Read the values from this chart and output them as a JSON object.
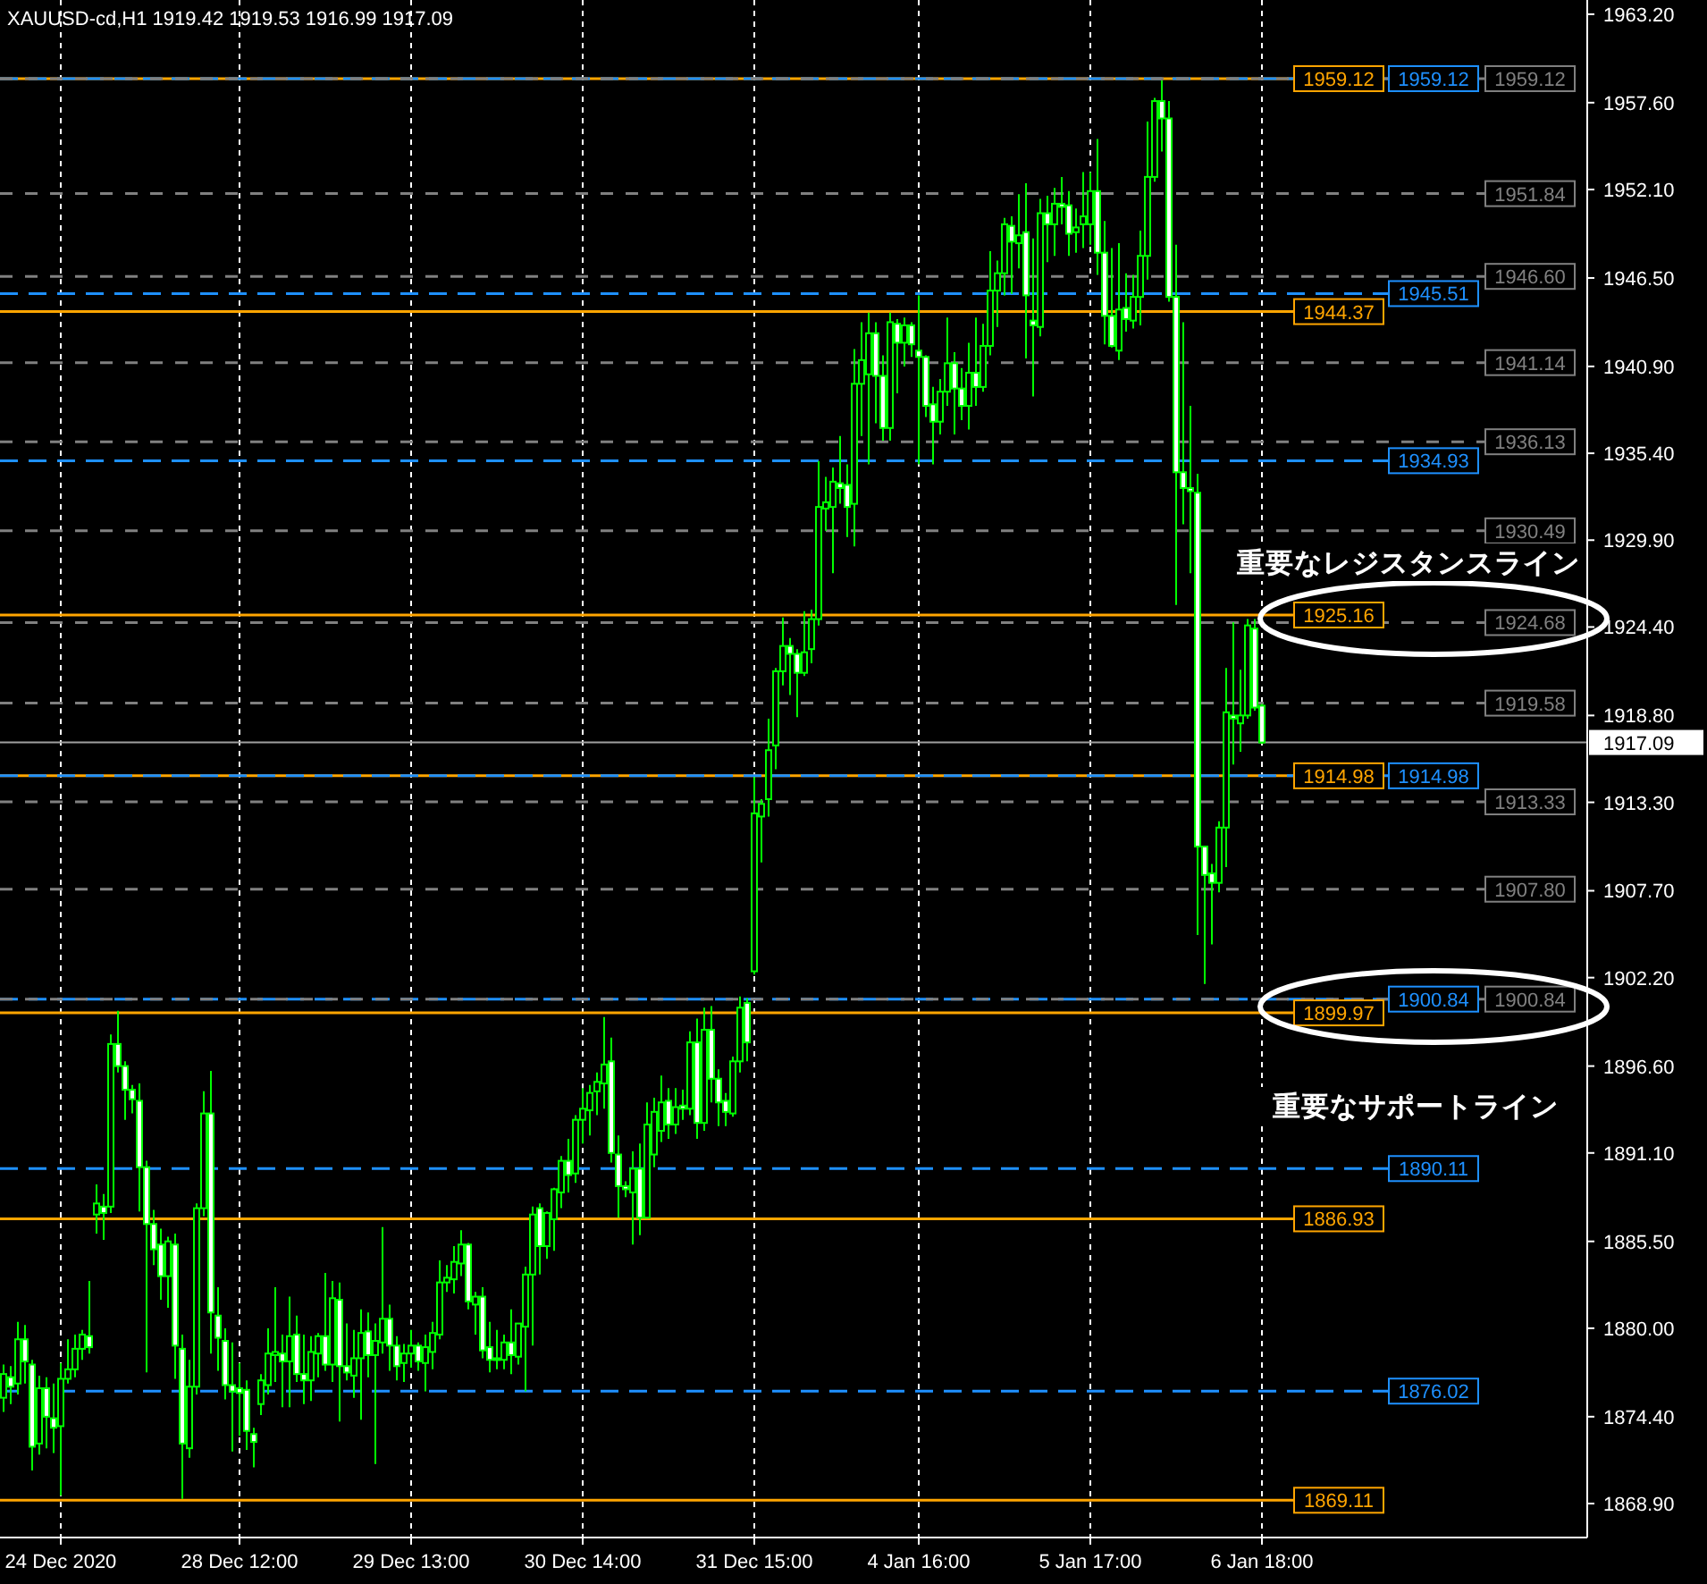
{
  "chart_data": {
    "type": "candlestick",
    "title": "XAUUSD-cd,H1  1919.42 1919.53 1916.99 1917.09",
    "categories": [
      null,
      null,
      null,
      null,
      null,
      null,
      null,
      null,
      "24 Dec 2020",
      null,
      null,
      null,
      null,
      null,
      null,
      null,
      null,
      null,
      null,
      null,
      null,
      null,
      null,
      null,
      null,
      null,
      null,
      null,
      null,
      null,
      null,
      null,
      null,
      "28 Dec 12:00",
      null,
      null,
      null,
      null,
      null,
      null,
      null,
      null,
      null,
      null,
      null,
      null,
      null,
      null,
      null,
      null,
      null,
      null,
      null,
      null,
      null,
      null,
      null,
      "29 Dec 13:00",
      null,
      null,
      null,
      null,
      null,
      null,
      null,
      null,
      null,
      null,
      null,
      null,
      null,
      null,
      null,
      null,
      null,
      null,
      null,
      null,
      null,
      null,
      null,
      "30 Dec 14:00",
      null,
      null,
      null,
      null,
      null,
      null,
      null,
      null,
      null,
      null,
      null,
      null,
      null,
      null,
      null,
      null,
      null,
      null,
      null,
      null,
      null,
      null,
      null,
      "31 Dec 15:00",
      null,
      null,
      null,
      null,
      null,
      null,
      null,
      null,
      null,
      null,
      null,
      null,
      null,
      null,
      null,
      null,
      null,
      null,
      null,
      null,
      null,
      null,
      "4 Jan 16:00",
      null,
      null,
      null,
      null,
      null,
      null,
      null,
      null,
      null,
      null,
      null,
      null,
      null,
      null,
      null,
      null,
      null,
      null,
      null,
      null,
      null,
      null,
      null,
      "5 Jan 17:00",
      null,
      null,
      null,
      null,
      null,
      null,
      null,
      null,
      null,
      null,
      null,
      null,
      null,
      null,
      null,
      null,
      null,
      null,
      null,
      null,
      null,
      null,
      null,
      "6 Jan 18:00",
      null,
      null,
      null,
      null,
      null,
      null,
      null,
      null,
      null,
      null,
      null,
      null,
      null,
      null,
      null,
      null,
      null,
      null,
      null,
      null,
      null,
      null,
      null,
      null,
      null,
      null,
      null,
      null,
      null,
      null,
      null,
      null,
      null,
      null,
      null,
      null,
      null,
      null,
      null,
      null,
      null,
      null,
      null,
      null,
      null
    ],
    "ohlc": [
      [
        1875.6,
        1877.7,
        1874.7,
        1877.1
      ],
      [
        1876.9,
        1877.6,
        1875.2,
        1876.3
      ],
      [
        1876.5,
        1880.4,
        1875.8,
        1879.3
      ],
      [
        1879.3,
        1880.2,
        1876.5,
        1877.9
      ],
      [
        1877.7,
        1878.0,
        1871.0,
        1872.5
      ],
      [
        1872.7,
        1877.0,
        1872.0,
        1876.2
      ],
      [
        1876.2,
        1876.9,
        1872.4,
        1874.4
      ],
      [
        1874.3,
        1876.5,
        1872.1,
        1873.7
      ],
      [
        1873.8,
        1877.8,
        1869.4,
        1876.8
      ],
      [
        1876.8,
        1879.3,
        1876.5,
        1877.4
      ],
      [
        1877.4,
        1879.6,
        1876.9,
        1878.7
      ],
      [
        1878.7,
        1879.9,
        1878.0,
        1879.6
      ],
      [
        1879.5,
        1883.0,
        1878.4,
        1878.8
      ],
      [
        1887.2,
        1889.1,
        1886.0,
        1887.9
      ],
      [
        1887.7,
        1888.5,
        1885.6,
        1887.3
      ],
      [
        1887.7,
        1898.6,
        1887.3,
        1898.0
      ],
      [
        1898.0,
        1900.1,
        1896.2,
        1896.6
      ],
      [
        1896.6,
        1896.9,
        1893.2,
        1895.1
      ],
      [
        1895.1,
        1895.4,
        1893.6,
        1894.5
      ],
      [
        1894.4,
        1895.5,
        1887.4,
        1890.2
      ],
      [
        1890.2,
        1890.6,
        1877.2,
        1886.6
      ],
      [
        1886.6,
        1887.5,
        1884.0,
        1885.0
      ],
      [
        1885.3,
        1886.3,
        1881.8,
        1883.3
      ],
      [
        1883.3,
        1885.8,
        1881.3,
        1885.5
      ],
      [
        1885.3,
        1886.0,
        1876.8,
        1878.9
      ],
      [
        1878.7,
        1879.6,
        1869.2,
        1872.7
      ],
      [
        1872.4,
        1878.0,
        1871.8,
        1876.3
      ],
      [
        1876.3,
        1887.9,
        1875.8,
        1887.6
      ],
      [
        1887.6,
        1895.0,
        1887.1,
        1893.6
      ],
      [
        1893.6,
        1896.3,
        1878.4,
        1881.0
      ],
      [
        1880.8,
        1882.6,
        1877.3,
        1879.4
      ],
      [
        1879.2,
        1880.0,
        1875.5,
        1876.4
      ],
      [
        1876.4,
        1879.1,
        1872.2,
        1876.0
      ],
      [
        1876.2,
        1877.8,
        1873.2,
        1875.9
      ],
      [
        1876.1,
        1876.7,
        1872.3,
        1873.5
      ],
      [
        1873.3,
        1873.7,
        1871.2,
        1872.8
      ],
      [
        1875.2,
        1877.1,
        1874.5,
        1876.7
      ],
      [
        1876.4,
        1880.0,
        1875.8,
        1878.4
      ],
      [
        1878.3,
        1882.6,
        1876.6,
        1878.5
      ],
      [
        1878.4,
        1879.6,
        1875.0,
        1877.9
      ],
      [
        1877.9,
        1882.0,
        1875.0,
        1879.5
      ],
      [
        1879.6,
        1880.8,
        1876.6,
        1877.1
      ],
      [
        1877.1,
        1879.6,
        1875.2,
        1876.7
      ],
      [
        1876.7,
        1879.5,
        1875.4,
        1878.5
      ],
      [
        1878.4,
        1879.7,
        1876.9,
        1879.5
      ],
      [
        1879.5,
        1883.5,
        1877.3,
        1877.7
      ],
      [
        1877.7,
        1883.0,
        1876.6,
        1881.9
      ],
      [
        1881.8,
        1882.9,
        1874.1,
        1877.6
      ],
      [
        1877.6,
        1880.3,
        1876.7,
        1877.2
      ],
      [
        1877.0,
        1879.9,
        1875.6,
        1878.1
      ],
      [
        1878.1,
        1881.2,
        1874.2,
        1879.7
      ],
      [
        1879.8,
        1881.0,
        1876.9,
        1878.3
      ],
      [
        1878.3,
        1880.3,
        1871.4,
        1879.2
      ],
      [
        1879.1,
        1886.4,
        1878.4,
        1880.6
      ],
      [
        1880.6,
        1881.5,
        1877.3,
        1878.9
      ],
      [
        1878.9,
        1879.5,
        1876.7,
        1877.6
      ],
      [
        1877.8,
        1879.0,
        1876.6,
        1878.4
      ],
      [
        1878.4,
        1879.9,
        1877.5,
        1878.9
      ],
      [
        1878.9,
        1879.1,
        1877.3,
        1877.9
      ],
      [
        1877.8,
        1879.6,
        1876.0,
        1878.8
      ],
      [
        1878.5,
        1880.4,
        1877.4,
        1879.7
      ],
      [
        1879.6,
        1884.3,
        1879.3,
        1882.9
      ],
      [
        1882.9,
        1884.0,
        1882.3,
        1883.2
      ],
      [
        1883.1,
        1885.2,
        1882.2,
        1884.2
      ],
      [
        1884.1,
        1886.2,
        1883.3,
        1885.3
      ],
      [
        1885.3,
        1885.4,
        1881.2,
        1881.7
      ],
      [
        1881.5,
        1882.3,
        1879.6,
        1882.0
      ],
      [
        1882.0,
        1882.6,
        1878.1,
        1878.6
      ],
      [
        1878.8,
        1880.4,
        1877.2,
        1878.0
      ],
      [
        1878.0,
        1879.9,
        1877.4,
        1878.1
      ],
      [
        1878.0,
        1879.6,
        1877.4,
        1879.1
      ],
      [
        1879.1,
        1881.2,
        1877.1,
        1878.3
      ],
      [
        1878.2,
        1880.3,
        1877.7,
        1880.3
      ],
      [
        1880.1,
        1883.9,
        1876.0,
        1883.4
      ],
      [
        1883.4,
        1887.7,
        1878.9,
        1887.2
      ],
      [
        1887.6,
        1887.9,
        1883.4,
        1885.2
      ],
      [
        1885.2,
        1887.4,
        1884.4,
        1887.3
      ],
      [
        1886.9,
        1888.9,
        1884.9,
        1888.8
      ],
      [
        1888.6,
        1890.9,
        1887.6,
        1890.6
      ],
      [
        1890.6,
        1892.0,
        1888.6,
        1889.7
      ],
      [
        1889.8,
        1893.5,
        1889.2,
        1893.2
      ],
      [
        1893.2,
        1895.2,
        1891.7,
        1893.9
      ],
      [
        1893.8,
        1895.4,
        1892.2,
        1894.9
      ],
      [
        1895.0,
        1896.2,
        1893.5,
        1895.6
      ],
      [
        1895.5,
        1899.7,
        1893.9,
        1896.7
      ],
      [
        1896.9,
        1898.4,
        1890.5,
        1891.1
      ],
      [
        1891.0,
        1892.2,
        1887.0,
        1889.0
      ],
      [
        1889.0,
        1889.3,
        1888.3,
        1888.8
      ],
      [
        1888.6,
        1891.2,
        1885.3,
        1890.1
      ],
      [
        1890.1,
        1891.7,
        1885.9,
        1887.0
      ],
      [
        1887.0,
        1894.3,
        1887.0,
        1892.9
      ],
      [
        1891.0,
        1894.6,
        1890.2,
        1893.7
      ],
      [
        1892.5,
        1896.0,
        1891.8,
        1894.3
      ],
      [
        1894.4,
        1895.2,
        1892.0,
        1892.9
      ],
      [
        1892.9,
        1895.2,
        1892.3,
        1894.0
      ],
      [
        1894.1,
        1895.1,
        1893.2,
        1893.9
      ],
      [
        1893.9,
        1898.8,
        1893.5,
        1898.1
      ],
      [
        1898.1,
        1899.6,
        1892.0,
        1893.0
      ],
      [
        1893.0,
        1900.3,
        1892.5,
        1898.9
      ],
      [
        1898.9,
        1900.4,
        1894.3,
        1895.8
      ],
      [
        1895.8,
        1896.4,
        1892.8,
        1894.3
      ],
      [
        1894.4,
        1894.9,
        1892.8,
        1893.7
      ],
      [
        1893.6,
        1897.2,
        1893.4,
        1896.9
      ],
      [
        1896.9,
        1901.0,
        1896.2,
        1900.3
      ],
      [
        1900.6,
        1900.9,
        1896.9,
        1898.1
      ],
      [
        1902.6,
        1914.9,
        1902.4,
        1912.6
      ],
      [
        1912.4,
        1913.5,
        1909.5,
        1913.2
      ],
      [
        1913.5,
        1918.6,
        1912.4,
        1916.6
      ],
      [
        1916.9,
        1921.8,
        1915.4,
        1921.6
      ],
      [
        1921.6,
        1925.0,
        1920.7,
        1923.2
      ],
      [
        1923.2,
        1923.7,
        1920.1,
        1922.7
      ],
      [
        1922.7,
        1923.0,
        1918.7,
        1921.5
      ],
      [
        1921.5,
        1925.4,
        1921.3,
        1922.8
      ],
      [
        1923.0,
        1925.5,
        1922.1,
        1924.9
      ],
      [
        1924.9,
        1934.9,
        1924.5,
        1932.0
      ],
      [
        1931.9,
        1933.9,
        1930.5,
        1932.3
      ],
      [
        1932.0,
        1934.5,
        1927.8,
        1933.6
      ],
      [
        1933.5,
        1936.5,
        1932.2,
        1933.2
      ],
      [
        1933.4,
        1934.7,
        1930.1,
        1932.0
      ],
      [
        1932.2,
        1942.0,
        1929.5,
        1939.8
      ],
      [
        1939.8,
        1943.7,
        1936.5,
        1941.3
      ],
      [
        1940.4,
        1944.3,
        1934.7,
        1943.0
      ],
      [
        1943.0,
        1943.7,
        1937.3,
        1940.3
      ],
      [
        1940.3,
        1941.6,
        1936.2,
        1937.0
      ],
      [
        1937.0,
        1944.3,
        1936.2,
        1943.7
      ],
      [
        1943.6,
        1943.9,
        1939.2,
        1942.4
      ],
      [
        1942.4,
        1944.0,
        1940.9,
        1943.5
      ],
      [
        1943.5,
        1943.7,
        1941.5,
        1942.3
      ],
      [
        1941.9,
        1945.4,
        1934.7,
        1941.5
      ],
      [
        1941.5,
        1941.6,
        1937.7,
        1938.4
      ],
      [
        1938.5,
        1939.6,
        1934.7,
        1937.4
      ],
      [
        1937.4,
        1940.1,
        1936.6,
        1939.3
      ],
      [
        1939.3,
        1944.0,
        1938.4,
        1941.1
      ],
      [
        1941.1,
        1941.8,
        1936.6,
        1939.5
      ],
      [
        1939.5,
        1940.8,
        1937.5,
        1938.4
      ],
      [
        1938.4,
        1942.4,
        1936.9,
        1940.5
      ],
      [
        1940.5,
        1944.0,
        1938.4,
        1939.6
      ],
      [
        1939.6,
        1943.6,
        1939.3,
        1942.2
      ],
      [
        1942.2,
        1948.2,
        1941.6,
        1945.7
      ],
      [
        1945.7,
        1947.6,
        1943.4,
        1946.8
      ],
      [
        1946.8,
        1950.3,
        1945.4,
        1949.9
      ],
      [
        1949.8,
        1950.4,
        1945.5,
        1948.8
      ],
      [
        1948.7,
        1951.8,
        1947.1,
        1949.2
      ],
      [
        1949.4,
        1952.5,
        1941.4,
        1945.4
      ],
      [
        1943.8,
        1949.0,
        1939.0,
        1943.5
      ],
      [
        1943.4,
        1951.5,
        1942.8,
        1950.6
      ],
      [
        1950.6,
        1951.7,
        1947.5,
        1949.9
      ],
      [
        1949.9,
        1952.2,
        1947.9,
        1951.2
      ],
      [
        1951.2,
        1952.9,
        1949.9,
        1951.0
      ],
      [
        1951.1,
        1952.0,
        1947.9,
        1949.3
      ],
      [
        1949.4,
        1950.9,
        1948.1,
        1949.7
      ],
      [
        1949.9,
        1953.2,
        1948.4,
        1950.4
      ],
      [
        1949.9,
        1953.2,
        1948.6,
        1952.0
      ],
      [
        1952.0,
        1955.3,
        1946.7,
        1948.1
      ],
      [
        1948.1,
        1950.1,
        1942.3,
        1944.1
      ],
      [
        1944.1,
        1948.4,
        1942.1,
        1942.2
      ],
      [
        1941.9,
        1948.7,
        1941.3,
        1944.5
      ],
      [
        1944.6,
        1946.8,
        1943.1,
        1943.9
      ],
      [
        1943.8,
        1946.7,
        1943.3,
        1945.3
      ],
      [
        1945.3,
        1949.5,
        1943.5,
        1947.9
      ],
      [
        1947.9,
        1956.4,
        1946.4,
        1952.9
      ],
      [
        1952.9,
        1957.9,
        1952.6,
        1957.7
      ],
      [
        1957.7,
        1959.0,
        1954.5,
        1956.6
      ],
      [
        1956.6,
        1957.7,
        1945.0,
        1945.3
      ],
      [
        1945.3,
        1948.6,
        1925.8,
        1934.2
      ],
      [
        1934.2,
        1943.7,
        1930.9,
        1933.2
      ],
      [
        1933.2,
        1938.4,
        1927.8,
        1933.0
      ],
      [
        1932.9,
        1934.1,
        1904.9,
        1910.5
      ],
      [
        1910.5,
        1910.5,
        1901.8,
        1908.7
      ],
      [
        1908.8,
        1909.4,
        1904.3,
        1908.2
      ],
      [
        1908.2,
        1912.1,
        1907.6,
        1911.7
      ],
      [
        1911.7,
        1921.8,
        1909.2,
        1919.0
      ],
      [
        1918.8,
        1924.7,
        1915.7,
        1918.6
      ],
      [
        1918.3,
        1921.7,
        1916.5,
        1918.8
      ],
      [
        1918.8,
        1924.9,
        1918.6,
        1924.5
      ],
      [
        1924.3,
        1924.9,
        1919.1,
        1919.3
      ],
      [
        1919.42,
        1919.53,
        1916.99,
        1917.09
      ],
      null,
      null,
      null,
      null,
      null,
      null,
      null,
      null,
      null,
      null,
      null,
      null,
      null,
      null,
      null,
      null,
      null,
      null,
      null,
      null,
      null,
      null,
      null,
      null,
      null,
      null,
      null,
      null,
      null,
      null,
      null,
      null,
      null,
      null,
      null,
      null,
      null,
      null,
      null,
      null,
      null,
      null,
      null,
      null,
      null
    ],
    "ylim": [
      1866.75,
      1964.1
    ],
    "yticks": [
      {
        "value": 1963.2,
        "label": "1963.20"
      },
      {
        "value": 1957.6,
        "label": "1957.60"
      },
      {
        "value": 1952.1,
        "label": "1952.10"
      },
      {
        "value": 1946.5,
        "label": "1946.50"
      },
      {
        "value": 1940.9,
        "label": "1940.90"
      },
      {
        "value": 1935.4,
        "label": "1935.40"
      },
      {
        "value": 1929.9,
        "label": "1929.90"
      },
      {
        "value": 1924.4,
        "label": "1924.40"
      },
      {
        "value": 1918.8,
        "label": "1918.80"
      },
      {
        "value": 1913.3,
        "label": "1913.30"
      },
      {
        "value": 1907.7,
        "label": "1907.70"
      },
      {
        "value": 1902.2,
        "label": "1902.20"
      },
      {
        "value": 1896.6,
        "label": "1896.60"
      },
      {
        "value": 1891.1,
        "label": "1891.10"
      },
      {
        "value": 1885.5,
        "label": "1885.50"
      },
      {
        "value": 1880.0,
        "label": "1880.00"
      },
      {
        "value": 1874.4,
        "label": "1874.40"
      },
      {
        "value": 1868.9,
        "label": "1868.90"
      }
    ],
    "grid": "x",
    "ref_lines": [
      {
        "axis": "y",
        "value": 1959.12,
        "label": "1959.12",
        "color": "#ffa500",
        "line_style": "solid"
      },
      {
        "axis": "y",
        "value": 1944.37,
        "label": "1944.37",
        "color": "#ffa500",
        "line_style": "solid"
      },
      {
        "axis": "y",
        "value": 1925.16,
        "label": "1925.16",
        "color": "#ffa500",
        "line_style": "solid"
      },
      {
        "axis": "y",
        "value": 1914.98,
        "label": "1914.98",
        "color": "#ffa500",
        "line_style": "solid"
      },
      {
        "axis": "y",
        "value": 1899.97,
        "label": "1899.97",
        "color": "#ffa500",
        "line_style": "solid"
      },
      {
        "axis": "y",
        "value": 1886.93,
        "label": "1886.93",
        "color": "#ffa500",
        "line_style": "solid"
      },
      {
        "axis": "y",
        "value": 1869.11,
        "label": "1869.11",
        "color": "#ffa500",
        "line_style": "solid"
      },
      {
        "axis": "y",
        "value": 1959.12,
        "label": "1959.12",
        "color": "#1e90ff",
        "line_style": "dashed"
      },
      {
        "axis": "y",
        "value": 1945.51,
        "label": "1945.51",
        "color": "#1e90ff",
        "line_style": "dashed"
      },
      {
        "axis": "y",
        "value": 1934.93,
        "label": "1934.93",
        "color": "#1e90ff",
        "line_style": "dashed"
      },
      {
        "axis": "y",
        "value": 1914.98,
        "label": "1914.98",
        "color": "#1e90ff",
        "line_style": "dashed"
      },
      {
        "axis": "y",
        "value": 1900.84,
        "label": "1900.84",
        "color": "#1e90ff",
        "line_style": "dashed"
      },
      {
        "axis": "y",
        "value": 1890.11,
        "label": "1890.11",
        "color": "#1e90ff",
        "line_style": "dashed"
      },
      {
        "axis": "y",
        "value": 1876.02,
        "label": "1876.02",
        "color": "#1e90ff",
        "line_style": "dashed"
      },
      {
        "axis": "y",
        "value": 1959.12,
        "label": "1959.12",
        "color": "#808080",
        "line_style": "dotted"
      },
      {
        "axis": "y",
        "value": 1951.84,
        "label": "1951.84",
        "color": "#808080",
        "line_style": "dotted"
      },
      {
        "axis": "y",
        "value": 1946.6,
        "label": "1946.60",
        "color": "#808080",
        "line_style": "dotted"
      },
      {
        "axis": "y",
        "value": 1941.14,
        "label": "1941.14",
        "color": "#808080",
        "line_style": "dotted"
      },
      {
        "axis": "y",
        "value": 1936.13,
        "label": "1936.13",
        "color": "#808080",
        "line_style": "dotted"
      },
      {
        "axis": "y",
        "value": 1930.49,
        "label": "1930.49",
        "color": "#808080",
        "line_style": "dotted"
      },
      {
        "axis": "y",
        "value": 1924.68,
        "label": "1924.68",
        "color": "#808080",
        "line_style": "dotted"
      },
      {
        "axis": "y",
        "value": 1919.58,
        "label": "1919.58",
        "color": "#808080",
        "line_style": "dotted"
      },
      {
        "axis": "y",
        "value": 1913.33,
        "label": "1913.33",
        "color": "#808080",
        "line_style": "dotted"
      },
      {
        "axis": "y",
        "value": 1907.8,
        "label": "1907.80",
        "color": "#808080",
        "line_style": "dotted"
      },
      {
        "axis": "y",
        "value": 1900.84,
        "label": "1900.84",
        "color": "#808080",
        "line_style": "dotted"
      },
      {
        "axis": "y",
        "value": 1917.09,
        "label": null,
        "color": "#a0a0a0",
        "line_style": "solid"
      }
    ],
    "annotations": [
      "重要なレジスタンスライン",
      "重要なサポートライン",
      "1917.09"
    ]
  }
}
